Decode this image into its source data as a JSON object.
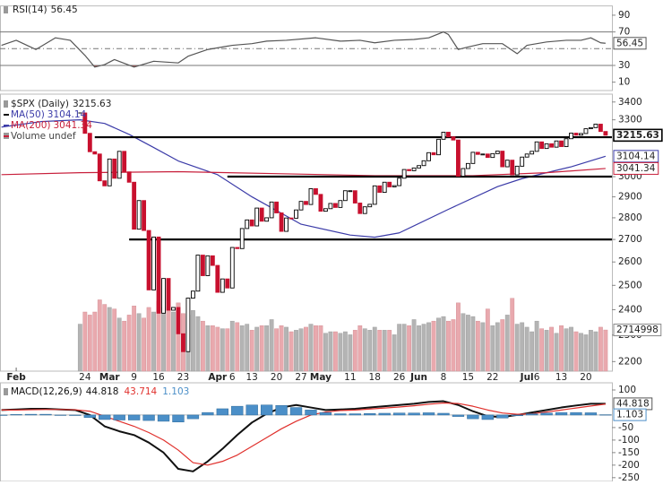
{
  "chart_data": [
    {
      "type": "line",
      "title": "RSI(14)",
      "x": [
        -16,
        -13,
        -9,
        -5,
        -2,
        1,
        3,
        5,
        7,
        11,
        15,
        20,
        22,
        26,
        31,
        35,
        38,
        42,
        48,
        53,
        57,
        60,
        64,
        68,
        71,
        74,
        75,
        77,
        79,
        82,
        86,
        89,
        91,
        95,
        99,
        102,
        104,
        106,
        107
      ],
      "series": [
        {
          "name": "RSI(14)",
          "color": "#555555",
          "last_value_box": true,
          "values": [
            54,
            60,
            49,
            63,
            60,
            42,
            28,
            31,
            37,
            28,
            35,
            33,
            41,
            49,
            54,
            56,
            59,
            60,
            63,
            59,
            60,
            57,
            60,
            61,
            63,
            70,
            67,
            49,
            52,
            56,
            56,
            44,
            54,
            58,
            60,
            60,
            63,
            57,
            56.45
          ]
        }
      ],
      "xlim": [
        -16.3,
        108.3
      ],
      "ylim": [
        0,
        100
      ],
      "yticks": [
        10,
        30,
        70,
        90
      ],
      "reference_lines": [
        {
          "value": 70,
          "style": "solid"
        },
        {
          "value": 50,
          "style": "dashdot"
        },
        {
          "value": 30,
          "style": "solid"
        }
      ],
      "oversold_fill": "#9c5a5a"
    },
    {
      "type": "candlestick",
      "log": true,
      "xlim": [
        -16.3,
        108.3
      ],
      "ylim": [
        2165,
        3440
      ],
      "yticks": [
        3400,
        3300,
        3000,
        2900,
        2800,
        2700,
        2600,
        2500,
        2400,
        2300,
        2200
      ],
      "xticks": [
        {
          "value": -13,
          "label": "Feb"
        },
        {
          "value": 1,
          "label": "24"
        },
        {
          "value": 6,
          "label": "Mar"
        },
        {
          "value": 11,
          "label": "9"
        },
        {
          "value": 16,
          "label": "16"
        },
        {
          "value": 21,
          "label": "23"
        },
        {
          "value": 28,
          "label": "Apr"
        },
        {
          "value": 31,
          "label": "6"
        },
        {
          "value": 35,
          "label": "13"
        },
        {
          "value": 40,
          "label": "20"
        },
        {
          "value": 45,
          "label": "27"
        },
        {
          "value": 49,
          "label": "May"
        },
        {
          "value": 55,
          "label": "11"
        },
        {
          "value": 60,
          "label": "18"
        },
        {
          "value": 65,
          "label": "26"
        },
        {
          "value": 69,
          "label": "Jun"
        },
        {
          "value": 74,
          "label": "8"
        },
        {
          "value": 79,
          "label": "15"
        },
        {
          "value": 84,
          "label": "22"
        },
        {
          "value": 91,
          "label": "Jul"
        },
        {
          "value": 93,
          "label": "6"
        },
        {
          "value": 98,
          "label": "13"
        },
        {
          "value": 103,
          "label": "20"
        }
      ],
      "y2lim": [
        0,
        18200000
      ],
      "levels": [
        {
          "value": 3205,
          "from": 3
        },
        {
          "value": 3000,
          "from": 30
        },
        {
          "value": 2700,
          "from": 10
        }
      ],
      "series": [
        {
          "name": "$SPX (Daily)",
          "kind": "candle",
          "up_color": "#000000",
          "down_color": "#c8102e",
          "last_value_box": true,
          "values": [
            3338,
            3226,
            3128,
            3116,
            2979,
            2954,
            3090,
            2992,
            3130,
            3024,
            2972,
            2747,
            2882,
            2741,
            2481,
            2711,
            2386,
            2529,
            2398,
            2409,
            2305,
            2237,
            2447,
            2476,
            2630,
            2541,
            2627,
            2585,
            2471,
            2527,
            2489,
            2664,
            2659,
            2750,
            2790,
            2762,
            2846,
            2784,
            2800,
            2875,
            2823,
            2737,
            2799,
            2798,
            2837,
            2878,
            2863,
            2940,
            2912,
            2831,
            2843,
            2868,
            2849,
            2882,
            2930,
            2930,
            2870,
            2820,
            2852,
            2864,
            2954,
            2922,
            2972,
            2949,
            2955,
            2992,
            3036,
            3030,
            3044,
            3056,
            3081,
            3123,
            3112,
            3194,
            3232,
            3207,
            3190,
            3002,
            3041,
            3067,
            3125,
            3114,
            3116,
            3098,
            3118,
            3131,
            3050,
            3084,
            3009,
            3053,
            3100,
            3116,
            3130,
            3180,
            3145,
            3170,
            3152,
            3185,
            3155,
            3197,
            3227,
            3216,
            3225,
            3251,
            3257,
            3276,
            3236,
            3215.63
          ]
        },
        {
          "name": "MA(50)",
          "kind": "line",
          "color": "#3b3ba8",
          "last_value_box": true,
          "x": [
            -16,
            -8,
            0,
            5,
            10,
            15,
            20,
            28,
            35,
            45,
            55,
            60,
            65,
            75,
            85,
            90,
            95,
            100,
            107
          ],
          "values": [
            3260,
            3290,
            3300,
            3280,
            3220,
            3150,
            3080,
            3010,
            2900,
            2770,
            2720,
            2710,
            2730,
            2840,
            2950,
            2990,
            3020,
            3050,
            3104.14
          ]
        },
        {
          "name": "MA(200)",
          "kind": "line",
          "color": "#c8203c",
          "last_value_box": true,
          "x": [
            -16,
            0,
            20,
            40,
            60,
            80,
            95,
            107
          ],
          "values": [
            3010,
            3020,
            3025,
            3015,
            3005,
            3005,
            3020,
            3041.34
          ]
        },
        {
          "name": "Volume undef",
          "kind": "volume",
          "axis": "y2",
          "color": "#9a9a9a",
          "up_color": "#b4b4b4",
          "down_color": "#e9a9ae",
          "last_value_box": true,
          "values": [
            3100000,
            3900000,
            3700000,
            3900000,
            4700000,
            4400000,
            4200000,
            4100000,
            3500000,
            3300000,
            3700000,
            4300000,
            3800000,
            3500000,
            4200000,
            3900000,
            4600000,
            4200000,
            4000000,
            3900000,
            4500000,
            3800000,
            3700000,
            4000000,
            3600000,
            3300000,
            3000000,
            3000000,
            2900000,
            2800000,
            2800000,
            3300000,
            3200000,
            3000000,
            3100000,
            2700000,
            2900000,
            3000000,
            3000000,
            3400000,
            2800000,
            3000000,
            2900000,
            2600000,
            2700000,
            2800000,
            2900000,
            3100000,
            3000000,
            3000000,
            2500000,
            2600000,
            2600000,
            2500000,
            2600000,
            2400000,
            2700000,
            3000000,
            2800000,
            2700000,
            2900000,
            2700000,
            2700000,
            2700000,
            2400000,
            3100000,
            3100000,
            3000000,
            3400000,
            3000000,
            3100000,
            3200000,
            3300000,
            3500000,
            3600000,
            3300000,
            3400000,
            4500000,
            3800000,
            3700000,
            3600000,
            3300000,
            3200000,
            4100000,
            3000000,
            3200000,
            3400000,
            3700000,
            4800000,
            3100000,
            3200000,
            2900000,
            2600000,
            3300000,
            2800000,
            2700000,
            2900000,
            2500000,
            3000000,
            2800000,
            2900000,
            2600000,
            2500000,
            2400000,
            2700000,
            2600000,
            2900000,
            2714998
          ]
        }
      ]
    },
    {
      "type": "line",
      "title": "MACD(12,26,9)",
      "x": [
        -16,
        -13,
        -10,
        -7,
        -4,
        -1,
        2,
        5,
        8,
        11,
        14,
        17,
        20,
        23,
        26,
        29,
        32,
        35,
        38,
        41,
        44,
        47,
        50,
        53,
        56,
        59,
        62,
        65,
        68,
        71,
        74,
        77,
        80,
        83,
        86,
        89,
        92,
        95,
        98,
        101,
        104,
        107
      ],
      "xlim": [
        -16.3,
        108.3
      ],
      "ylim": [
        -265,
        125
      ],
      "yticks": [
        100,
        -50,
        -100,
        -150,
        -200,
        -250
      ],
      "series": [
        {
          "kind": "line",
          "color": "#111111",
          "last_value_box": true,
          "values": [
            20,
            22,
            25,
            25,
            22,
            20,
            0,
            -45,
            -65,
            -80,
            -110,
            -150,
            -215,
            -225,
            -185,
            -135,
            -80,
            -30,
            5,
            30,
            40,
            30,
            20,
            22,
            25,
            30,
            35,
            40,
            45,
            52,
            55,
            40,
            15,
            -5,
            -8,
            0,
            10,
            20,
            30,
            38,
            45,
            44.818
          ]
        },
        {
          "kind": "line",
          "color": "#e0302c",
          "values": [
            20,
            20,
            21,
            22,
            22,
            21,
            15,
            -5,
            -25,
            -45,
            -70,
            -100,
            -140,
            -190,
            -200,
            -185,
            -160,
            -125,
            -90,
            -55,
            -25,
            0,
            12,
            18,
            20,
            24,
            28,
            32,
            37,
            43,
            48,
            46,
            35,
            20,
            8,
            3,
            5,
            12,
            20,
            28,
            36,
            43.714
          ]
        },
        {
          "kind": "bar",
          "color": "#4b8fc8",
          "last_value_box": true,
          "values": [
            0,
            2,
            3,
            3,
            0,
            -2,
            -10,
            -18,
            -20,
            -20,
            -22,
            -25,
            -28,
            -15,
            10,
            25,
            35,
            40,
            40,
            38,
            30,
            20,
            10,
            5,
            5,
            6,
            7,
            8,
            8,
            9,
            7,
            -6,
            -15,
            -18,
            -12,
            -3,
            5,
            8,
            10,
            10,
            9,
            1.103
          ]
        }
      ]
    }
  ]
}
